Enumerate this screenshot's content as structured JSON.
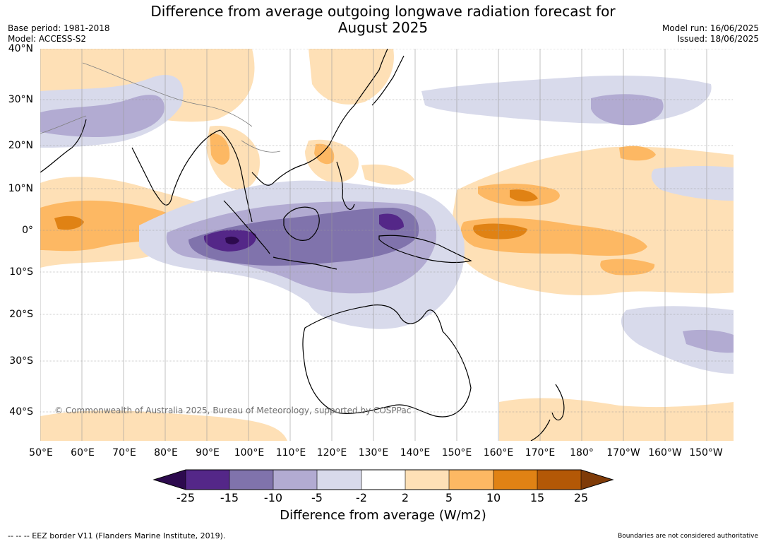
{
  "title": "Difference from average outgoing longwave radiation forecast for August 2025",
  "title_line1": "Difference from average outgoing longwave radiation forecast for",
  "title_line2": "August 2025",
  "base_period": "Base period: 1981-2018",
  "model": "Model: ACCESS-S2",
  "model_run": "Model run: 16/06/2025",
  "issued": "Issued: 18/06/2025",
  "copyright": "© Commonwealth of Australia 2025, Bureau of Meteorology, supported by COSPPac",
  "lat_labels": [
    "40°N",
    "30°N",
    "20°N",
    "10°N",
    "0°",
    "10°S",
    "20°S",
    "30°S",
    "40°S"
  ],
  "lon_labels": [
    "50°E",
    "60°E",
    "70°E",
    "80°E",
    "90°E",
    "100°E",
    "110°E",
    "120°E",
    "130°E",
    "140°E",
    "150°E",
    "160°E",
    "170°E",
    "180°",
    "170°W",
    "160°W",
    "150°W"
  ],
  "colorbar": {
    "label": "Difference from average (W/m2)",
    "ticks": [
      "-25",
      "-15",
      "-10",
      "-5",
      "-2",
      "2",
      "5",
      "10",
      "15",
      "25"
    ],
    "colors": {
      "lt_-25": "#2d0a4e",
      "-25_-15": "#542788",
      "-15_-10": "#8073ac",
      "-10_-5": "#b2abd2",
      "-5_-2": "#d8daeb",
      "-2_2": "#ffffff",
      "2_5": "#fee0b6",
      "5_10": "#fdb863",
      "10_15": "#e08214",
      "15_25": "#b35806",
      "gt_25": "#7f3b08"
    }
  },
  "footer_left": "--  --  -- EEZ border V11 (Flanders Marine Institute, 2019).",
  "footer_right": "Boundaries are not considered authoritative"
}
